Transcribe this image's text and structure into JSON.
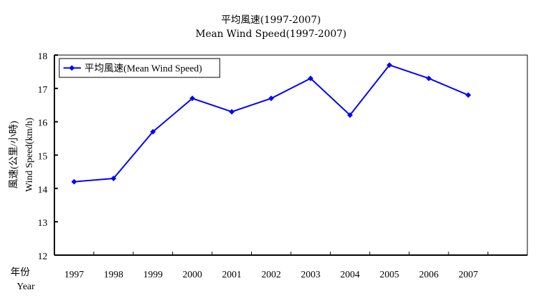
{
  "chart_data": {
    "type": "line",
    "title": "平均風速(1997-2007)",
    "subtitle": "Mean Wind Speed(1997-2007)",
    "xlabel": [
      "年份",
      "Year"
    ],
    "ylabel": [
      "風速(公里/小時)",
      "Wind Speed(km/h)"
    ],
    "categories": [
      "1997",
      "1998",
      "1999",
      "2000",
      "2001",
      "2002",
      "2003",
      "2004",
      "2005",
      "2006",
      "2007"
    ],
    "series": [
      {
        "name": "平均風速(Mean Wind Speed)",
        "color": "#0000FF",
        "values": [
          14.2,
          14.3,
          15.7,
          16.7,
          16.3,
          16.7,
          17.3,
          16.2,
          17.7,
          17.3,
          16.8
        ]
      }
    ],
    "ylim": [
      12,
      18
    ],
    "yticks": [
      12,
      13,
      14,
      15,
      16,
      17,
      18
    ],
    "grid": false,
    "legend_position": "top-left inside",
    "x_slots": 12
  }
}
